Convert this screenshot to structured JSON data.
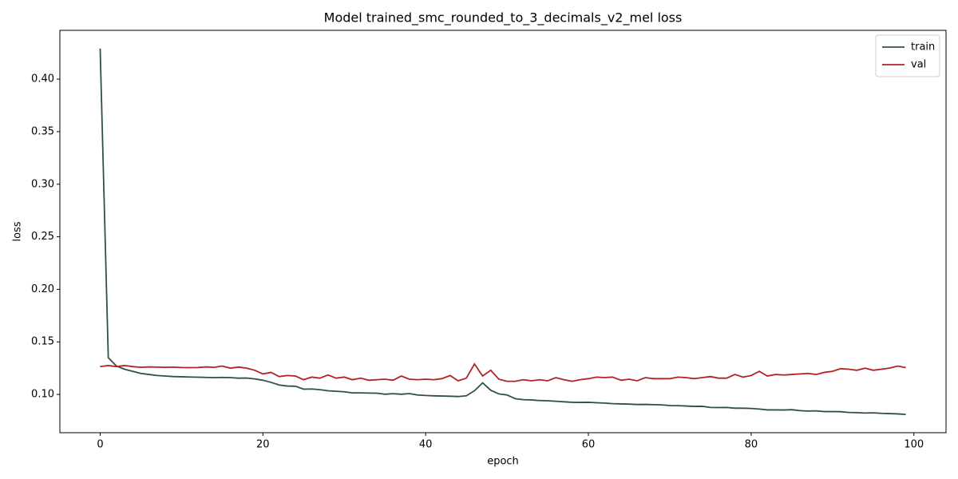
{
  "chart_data": {
    "type": "line",
    "title": "Model trained_smc_rounded_to_3_decimals_v2_mel loss",
    "x_label": "epoch",
    "y_label": "loss",
    "x": [
      0,
      1,
      2,
      3,
      4,
      5,
      6,
      7,
      8,
      9,
      10,
      11,
      12,
      13,
      14,
      15,
      16,
      17,
      18,
      19,
      20,
      21,
      22,
      23,
      24,
      25,
      26,
      27,
      28,
      29,
      30,
      31,
      32,
      33,
      34,
      35,
      36,
      37,
      38,
      39,
      40,
      41,
      42,
      43,
      44,
      45,
      46,
      47,
      48,
      49,
      50,
      51,
      52,
      53,
      54,
      55,
      56,
      57,
      58,
      59,
      60,
      61,
      62,
      63,
      64,
      65,
      66,
      67,
      68,
      69,
      70,
      71,
      72,
      73,
      74,
      75,
      76,
      77,
      78,
      79,
      80,
      81,
      82,
      83,
      84,
      85,
      86,
      87,
      88,
      89,
      90,
      91,
      92,
      93,
      94,
      95,
      96,
      97,
      98,
      99
    ],
    "series": [
      {
        "name": "train",
        "color": "#2f4f4f",
        "values": [
          0.429,
          0.135,
          0.127,
          0.124,
          0.122,
          0.12,
          0.119,
          0.118,
          0.1175,
          0.117,
          0.1168,
          0.1166,
          0.1164,
          0.1162,
          0.116,
          0.1162,
          0.116,
          0.1155,
          0.1156,
          0.1148,
          0.1135,
          0.1115,
          0.109,
          0.108,
          0.1078,
          0.105,
          0.1052,
          0.1045,
          0.1035,
          0.103,
          0.1025,
          0.1015,
          0.1015,
          0.1013,
          0.1012,
          0.1002,
          0.1007,
          0.1002,
          0.1008,
          0.0995,
          0.099,
          0.0987,
          0.0985,
          0.0983,
          0.098,
          0.0987,
          0.1035,
          0.111,
          0.104,
          0.1005,
          0.0995,
          0.096,
          0.095,
          0.0948,
          0.0942,
          0.094,
          0.0935,
          0.093,
          0.0925,
          0.0924,
          0.0925,
          0.0921,
          0.0918,
          0.0912,
          0.091,
          0.0908,
          0.0904,
          0.0905,
          0.0903,
          0.0901,
          0.0894,
          0.0893,
          0.089,
          0.0886,
          0.0887,
          0.0876,
          0.0875,
          0.0876,
          0.0869,
          0.0869,
          0.0867,
          0.0861,
          0.0853,
          0.0853,
          0.0852,
          0.0855,
          0.0846,
          0.0842,
          0.0844,
          0.0837,
          0.0837,
          0.0836,
          0.0829,
          0.0827,
          0.0823,
          0.0825,
          0.082,
          0.0818,
          0.0815,
          0.081
        ]
      },
      {
        "name": "val",
        "color": "#b22222",
        "values": [
          0.1265,
          0.1275,
          0.1265,
          0.1275,
          0.1265,
          0.1258,
          0.1262,
          0.126,
          0.1258,
          0.126,
          0.1256,
          0.1255,
          0.1256,
          0.1262,
          0.1258,
          0.127,
          0.125,
          0.126,
          0.125,
          0.123,
          0.1195,
          0.121,
          0.117,
          0.118,
          0.1175,
          0.114,
          0.1165,
          0.1155,
          0.1185,
          0.1155,
          0.1165,
          0.114,
          0.1155,
          0.1135,
          0.114,
          0.1145,
          0.1135,
          0.1175,
          0.1145,
          0.114,
          0.1145,
          0.114,
          0.115,
          0.118,
          0.113,
          0.1155,
          0.129,
          0.1175,
          0.123,
          0.1145,
          0.1125,
          0.1125,
          0.114,
          0.113,
          0.114,
          0.113,
          0.116,
          0.114,
          0.1125,
          0.114,
          0.115,
          0.1165,
          0.116,
          0.1165,
          0.1135,
          0.1145,
          0.113,
          0.116,
          0.115,
          0.115,
          0.115,
          0.1165,
          0.116,
          0.115,
          0.116,
          0.117,
          0.1155,
          0.1155,
          0.119,
          0.1165,
          0.118,
          0.122,
          0.1175,
          0.119,
          0.1185,
          0.119,
          0.1195,
          0.12,
          0.119,
          0.121,
          0.122,
          0.1245,
          0.124,
          0.123,
          0.125,
          0.123,
          0.124,
          0.125,
          0.127,
          0.1255
        ]
      }
    ],
    "xlim": [
      -4.95,
      103.95
    ],
    "xticks": [
      0,
      20,
      40,
      60,
      80,
      100
    ],
    "ylim": [
      0.0636,
      0.4464
    ],
    "yticks": [
      {
        "value": 0.1,
        "label": "0.10"
      },
      0.15,
      {
        "value": 0.2,
        "label": "0.20"
      },
      0.25,
      {
        "value": 0.3,
        "label": "0.30"
      },
      0.35,
      {
        "value": 0.4,
        "label": "0.40"
      }
    ],
    "legend": "upper right"
  }
}
